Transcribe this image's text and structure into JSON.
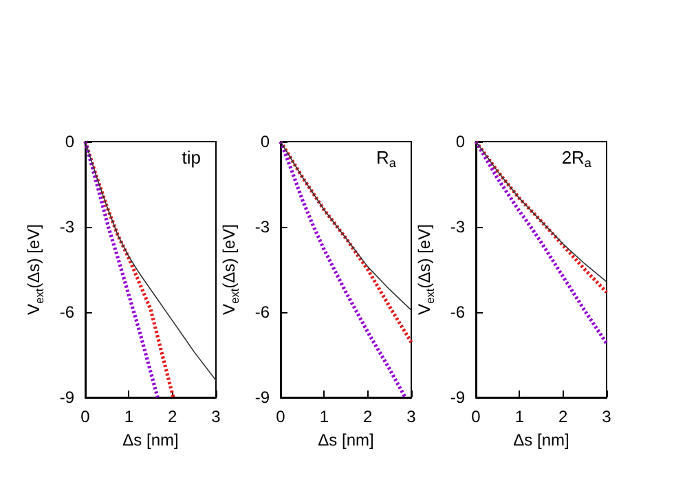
{
  "chart_data": [
    {
      "type": "line",
      "annotations": [
        "tip"
      ],
      "xlabel": "Δs [nm]",
      "ylabel": "V$_{ext}$(Δs) [eV]",
      "xlim": [
        0,
        3
      ],
      "ylim": [
        -9,
        0
      ],
      "xticks": [
        0,
        1,
        2,
        3
      ],
      "yticks": [
        0,
        -3,
        -6,
        -9
      ],
      "grid": false,
      "series": [
        {
          "color": "#333333",
          "line_style": "solid",
          "x": [
            0,
            0.25,
            0.5,
            0.75,
            1,
            1.25,
            1.5,
            2,
            2.5,
            3
          ],
          "values": [
            0,
            -1.2,
            -2.3,
            -3.3,
            -4.05,
            -4.65,
            -5.2,
            -6.3,
            -7.4,
            -8.4
          ]
        },
        {
          "color": "#e41a1c",
          "line_style": "dotted",
          "x": [
            0,
            0.25,
            0.5,
            0.75,
            1,
            1.25,
            1.5,
            1.75,
            2.02
          ],
          "values": [
            0,
            -1.2,
            -2.3,
            -3.3,
            -4.1,
            -5.0,
            -5.9,
            -7.4,
            -9
          ]
        },
        {
          "color": "#9400d3",
          "line_style": "dotted",
          "x": [
            0,
            0.25,
            0.53,
            0.75,
            1,
            1.25,
            1.5,
            1.66
          ],
          "values": [
            0,
            -1.4,
            -3,
            -4.1,
            -5.4,
            -6.7,
            -8.1,
            -9
          ]
        }
      ]
    },
    {
      "type": "line",
      "annotations": [
        "R$_{a}$"
      ],
      "xlabel": "Δs [nm]",
      "ylabel": "V$_{ext}$(Δs) [eV]",
      "xlim": [
        0,
        3
      ],
      "ylim": [
        -9,
        0
      ],
      "xticks": [
        0,
        1,
        2,
        3
      ],
      "yticks": [
        0,
        -3,
        -6,
        -9
      ],
      "grid": false,
      "series": [
        {
          "color": "#333333",
          "line_style": "solid",
          "x": [
            0,
            0.5,
            1,
            1.5,
            2,
            2.5,
            3
          ],
          "values": [
            0,
            -1.25,
            -2.4,
            -3.4,
            -4.4,
            -5.2,
            -5.93
          ]
        },
        {
          "color": "#e41a1c",
          "line_style": "dotted",
          "x": [
            0,
            0.5,
            1,
            1.5,
            1.75,
            2,
            2.5,
            3
          ],
          "values": [
            0,
            -1.25,
            -2.4,
            -3.4,
            -3.95,
            -4.5,
            -5.8,
            -7.06
          ]
        },
        {
          "color": "#9400d3",
          "line_style": "dotted",
          "x": [
            0,
            0.25,
            0.5,
            0.76,
            1,
            1.5,
            2,
            2.5,
            2.86
          ],
          "values": [
            0,
            -1.0,
            -2.05,
            -3,
            -3.8,
            -5.3,
            -6.7,
            -8.0,
            -9
          ]
        }
      ]
    },
    {
      "type": "line",
      "annotations": [
        "2R$_{a}$"
      ],
      "xlabel": "Δs [nm]",
      "ylabel": "V$_{ext}$(Δs) [eV]",
      "xlim": [
        0,
        3
      ],
      "ylim": [
        -9,
        0
      ],
      "xticks": [
        0,
        1,
        2,
        3
      ],
      "yticks": [
        0,
        -3,
        -6,
        -9
      ],
      "grid": false,
      "series": [
        {
          "color": "#333333",
          "line_style": "solid",
          "x": [
            0,
            0.5,
            1,
            1.5,
            2,
            2.5,
            3
          ],
          "values": [
            0,
            -1.05,
            -2.0,
            -2.8,
            -3.6,
            -4.3,
            -4.93
          ]
        },
        {
          "color": "#e41a1c",
          "line_style": "dotted",
          "x": [
            0,
            0.5,
            1,
            1.5,
            2,
            2.5,
            3
          ],
          "values": [
            0,
            -1.05,
            -2.0,
            -2.8,
            -3.65,
            -4.5,
            -5.3
          ]
        },
        {
          "color": "#9400d3",
          "line_style": "dotted",
          "x": [
            0,
            0.5,
            1,
            1.26,
            1.5,
            2,
            2.5,
            3
          ],
          "values": [
            0,
            -1.3,
            -2.45,
            -3,
            -3.55,
            -4.75,
            -5.95,
            -7.1
          ]
        }
      ]
    }
  ]
}
